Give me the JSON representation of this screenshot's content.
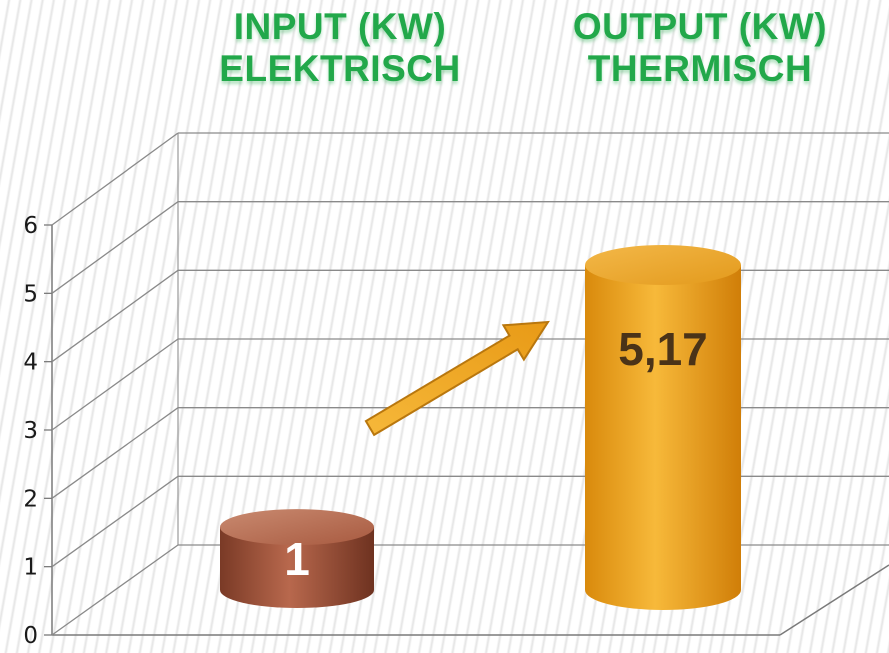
{
  "chart_data": {
    "type": "bar",
    "categories": [
      "INPUT (KW) ELEKTRISCH",
      "OUTPUT (KW) THERMISCH"
    ],
    "category_lines": [
      [
        "INPUT (KW)",
        "ELEKTRISCH"
      ],
      [
        "OUTPUT (KW)",
        "THERMISCH"
      ]
    ],
    "values": [
      1,
      5.17
    ],
    "data_labels": [
      "1",
      "5,17"
    ],
    "ylim": [
      0,
      6
    ],
    "yticks": [
      "0",
      "1",
      "2",
      "3",
      "4",
      "5",
      "6"
    ],
    "grid": true,
    "style": "3d-cylinder",
    "annotation": "arrow from INPUT to OUTPUT",
    "colors": {
      "input": "#a0523a",
      "output": "#f0a81e",
      "header": "#22a84a",
      "arrow": "#f0a81e"
    }
  }
}
